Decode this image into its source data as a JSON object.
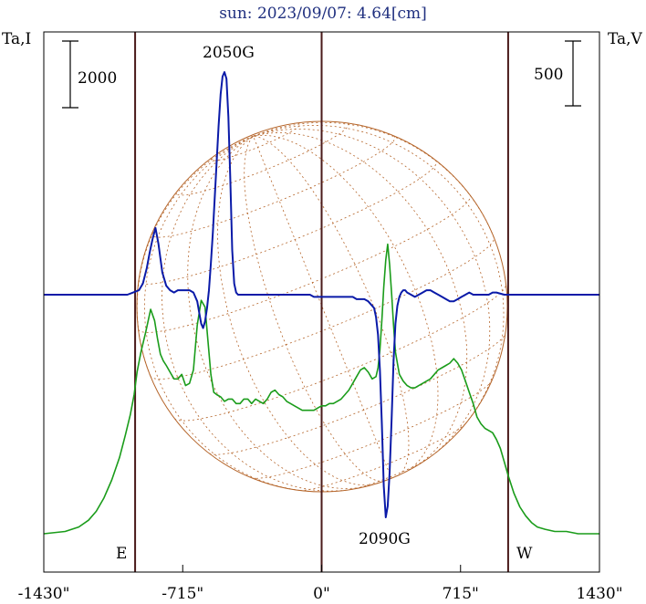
{
  "title": "sun: 2023/09/07: 4.64[cm]",
  "left_axis_label": "Ta,I",
  "right_axis_label": "Ta,V",
  "left_scale_label": "2000",
  "right_scale_label": "500",
  "east_label": "E",
  "west_label": "W",
  "annotations": [
    "2050G",
    "2090G"
  ],
  "colors": {
    "background": "#ffffff",
    "title": "#1f2f7f",
    "intensity": "#1a9c1a",
    "polarization": "#0a1aa8",
    "sun_grid": "#b5652a",
    "limb_lines": "#4a1a1a",
    "text": "#000000"
  },
  "chart_data": {
    "type": "line",
    "title": "sun: 2023/09/07: 4.64[cm]",
    "xlabel": "",
    "ylabel": "Ta,I",
    "ylabel_right": "Ta,V",
    "x_ticks": [
      "-1430\"",
      "-715\"",
      "0\"",
      "715\"",
      "1430\""
    ],
    "x_tick_values": [
      -1430,
      -715,
      0,
      715,
      1430
    ],
    "xlim": [
      -1430,
      1430
    ],
    "limb_positions": [
      -960,
      960
    ],
    "scale_bars": {
      "left": 2000,
      "right": 500
    },
    "annotations": [
      {
        "text": "2050G",
        "x": -460
      },
      {
        "text": "2090G",
        "x": 340
      }
    ],
    "series": [
      {
        "role": "intensity",
        "x": [
          -1430,
          -1320,
          -1250,
          -1200,
          -1160,
          -1120,
          -1080,
          -1040,
          -1010,
          -985,
          -965,
          -950,
          -930,
          -905,
          -880,
          -860,
          -845,
          -830,
          -815,
          -800,
          -780,
          -760,
          -740,
          -720,
          -700,
          -680,
          -660,
          -640,
          -620,
          -600,
          -585,
          -570,
          -555,
          -540,
          -520,
          -500,
          -480,
          -460,
          -440,
          -420,
          -400,
          -380,
          -360,
          -340,
          -320,
          -300,
          -280,
          -260,
          -240,
          -220,
          -200,
          -180,
          -160,
          -140,
          -120,
          -100,
          -80,
          -60,
          -40,
          -20,
          0,
          20,
          40,
          60,
          80,
          100,
          120,
          140,
          160,
          180,
          200,
          220,
          240,
          260,
          280,
          290,
          300,
          310,
          320,
          330,
          340,
          350,
          360,
          370,
          380,
          390,
          400,
          420,
          440,
          460,
          480,
          500,
          520,
          540,
          560,
          580,
          600,
          620,
          640,
          660,
          680,
          700,
          720,
          740,
          760,
          780,
          800,
          820,
          840,
          860,
          880,
          900,
          920,
          940,
          960,
          990,
          1020,
          1050,
          1080,
          1110,
          1150,
          1200,
          1260,
          1320,
          1380,
          1430
        ],
        "y": [
          0.0,
          0.01,
          0.03,
          0.06,
          0.1,
          0.16,
          0.24,
          0.34,
          0.44,
          0.53,
          0.62,
          0.72,
          0.81,
          0.9,
          1.0,
          0.95,
          0.87,
          0.8,
          0.77,
          0.75,
          0.72,
          0.69,
          0.69,
          0.71,
          0.66,
          0.67,
          0.73,
          0.93,
          1.04,
          1.01,
          0.86,
          0.71,
          0.63,
          0.62,
          0.61,
          0.59,
          0.6,
          0.6,
          0.58,
          0.58,
          0.6,
          0.6,
          0.58,
          0.6,
          0.59,
          0.58,
          0.6,
          0.63,
          0.64,
          0.62,
          0.61,
          0.59,
          0.58,
          0.57,
          0.56,
          0.55,
          0.55,
          0.55,
          0.55,
          0.56,
          0.57,
          0.57,
          0.58,
          0.58,
          0.59,
          0.6,
          0.62,
          0.64,
          0.67,
          0.7,
          0.73,
          0.74,
          0.72,
          0.69,
          0.7,
          0.74,
          0.82,
          0.95,
          1.1,
          1.22,
          1.29,
          1.2,
          1.07,
          0.93,
          0.81,
          0.76,
          0.71,
          0.68,
          0.66,
          0.65,
          0.65,
          0.66,
          0.67,
          0.68,
          0.69,
          0.71,
          0.73,
          0.74,
          0.75,
          0.76,
          0.78,
          0.76,
          0.73,
          0.68,
          0.63,
          0.58,
          0.52,
          0.49,
          0.47,
          0.46,
          0.45,
          0.42,
          0.38,
          0.32,
          0.26,
          0.18,
          0.12,
          0.08,
          0.05,
          0.03,
          0.02,
          0.01,
          0.01,
          0.0,
          0.0,
          0.0
        ]
      },
      {
        "role": "polarization",
        "x": [
          -1430,
          -1300,
          -1200,
          -1100,
          -1000,
          -970,
          -940,
          -920,
          -900,
          -885,
          -870,
          -855,
          -840,
          -820,
          -800,
          -780,
          -760,
          -740,
          -720,
          -700,
          -680,
          -660,
          -640,
          -630,
          -620,
          -610,
          -600,
          -590,
          -580,
          -570,
          -560,
          -550,
          -540,
          -530,
          -520,
          -510,
          -500,
          -490,
          -480,
          -470,
          -460,
          -450,
          -440,
          -430,
          -420,
          -410,
          -400,
          -390,
          -380,
          -370,
          -360,
          -340,
          -320,
          -300,
          -280,
          -260,
          -240,
          -220,
          -200,
          -180,
          -160,
          -140,
          -120,
          -100,
          -80,
          -60,
          -40,
          -20,
          0,
          20,
          40,
          60,
          80,
          100,
          120,
          140,
          160,
          180,
          200,
          220,
          240,
          260,
          270,
          280,
          290,
          300,
          310,
          320,
          330,
          340,
          350,
          360,
          370,
          380,
          390,
          400,
          410,
          420,
          430,
          440,
          460,
          480,
          500,
          520,
          540,
          560,
          580,
          600,
          620,
          640,
          660,
          680,
          700,
          720,
          740,
          760,
          780,
          800,
          820,
          840,
          860,
          880,
          900,
          940,
          980,
          1020,
          1060,
          1100,
          1200,
          1300,
          1430
        ],
        "y": [
          0.0,
          0.0,
          0.0,
          0.0,
          0.0,
          0.01,
          0.02,
          0.05,
          0.12,
          0.19,
          0.25,
          0.3,
          0.23,
          0.1,
          0.04,
          0.02,
          0.01,
          0.02,
          0.02,
          0.02,
          0.02,
          0.01,
          -0.03,
          -0.08,
          -0.13,
          -0.15,
          -0.12,
          -0.06,
          0.02,
          0.14,
          0.28,
          0.44,
          0.6,
          0.76,
          0.9,
          0.98,
          1.0,
          0.97,
          0.8,
          0.52,
          0.2,
          0.05,
          0.01,
          0.0,
          0.0,
          0.0,
          0.0,
          0.0,
          0.0,
          0.0,
          0.0,
          0.0,
          0.0,
          0.0,
          0.0,
          0.0,
          0.0,
          0.0,
          0.0,
          0.0,
          0.0,
          0.0,
          0.0,
          0.0,
          0.0,
          0.0,
          -0.01,
          -0.01,
          -0.01,
          -0.01,
          -0.01,
          -0.01,
          -0.01,
          -0.01,
          -0.01,
          -0.01,
          -0.01,
          -0.02,
          -0.02,
          -0.02,
          -0.03,
          -0.05,
          -0.06,
          -0.1,
          -0.18,
          -0.34,
          -0.58,
          -0.86,
          -1.0,
          -0.95,
          -0.8,
          -0.56,
          -0.3,
          -0.13,
          -0.05,
          -0.01,
          0.01,
          0.02,
          0.02,
          0.01,
          0.0,
          -0.01,
          0.0,
          0.01,
          0.02,
          0.02,
          0.01,
          0.0,
          -0.01,
          -0.02,
          -0.03,
          -0.03,
          -0.02,
          -0.01,
          0.0,
          0.01,
          0.0,
          0.0,
          0.0,
          0.0,
          0.0,
          0.01,
          0.01,
          0.0,
          0.0,
          0.0,
          0.0,
          0.0,
          0.0,
          0.0,
          0.0
        ]
      }
    ]
  }
}
